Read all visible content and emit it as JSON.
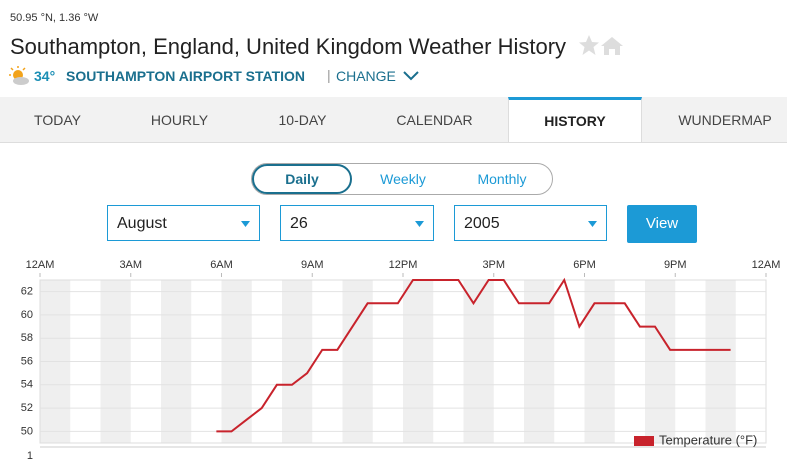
{
  "header": {
    "coords": "50.95 °N, 1.36 °W",
    "title": "Southampton, England, United Kingdom Weather History",
    "current_temp": "34°",
    "station": "SOUTHAMPTON AIRPORT STATION",
    "change": "CHANGE"
  },
  "tabs": [
    "TODAY",
    "HOURLY",
    "10-DAY",
    "CALENDAR",
    "HISTORY",
    "WUNDERMAP"
  ],
  "toggle": [
    "Daily",
    "Weekly",
    "Monthly"
  ],
  "selects": {
    "month": "August",
    "day": "26",
    "year": "2005",
    "button": "View"
  },
  "lower_panel": {
    "tick_label": "1"
  },
  "chart_data": {
    "type": "line",
    "x": [
      5.83,
      6.33,
      6.83,
      7.33,
      7.83,
      8.33,
      8.83,
      9.33,
      9.83,
      10.33,
      10.83,
      11.33,
      11.83,
      12.33,
      12.83,
      13.33,
      13.83,
      14.33,
      14.83,
      15.33,
      15.83,
      16.33,
      16.83,
      17.33,
      17.83,
      18.33,
      18.83,
      19.33,
      19.83,
      20.33,
      20.83,
      21.33,
      21.83,
      22.33,
      22.83
    ],
    "series": [
      {
        "name": "Temperature (°F)",
        "color": "#c8232c",
        "values": [
          50,
          50,
          51,
          52,
          54,
          54,
          55,
          57,
          57,
          59,
          61,
          61,
          61,
          63,
          63,
          63,
          63,
          61,
          63,
          63,
          61,
          61,
          61,
          63,
          59,
          61,
          61,
          61,
          59,
          59,
          57,
          57,
          57,
          57,
          57
        ]
      }
    ],
    "xlim": [
      0,
      24
    ],
    "xticks": [
      {
        "value": 0,
        "label": "12AM"
      },
      {
        "value": 3,
        "label": "3AM"
      },
      {
        "value": 6,
        "label": "6AM"
      },
      {
        "value": 9,
        "label": "9AM"
      },
      {
        "value": 12,
        "label": "12PM"
      },
      {
        "value": 15,
        "label": "3PM"
      },
      {
        "value": 18,
        "label": "6PM"
      },
      {
        "value": 21,
        "label": "9PM"
      },
      {
        "value": 24,
        "label": "12AM"
      }
    ],
    "ylim": [
      49,
      63
    ],
    "yticks": [
      50,
      52,
      54,
      56,
      58,
      60,
      62
    ],
    "grid": true,
    "legend": "bottom-right"
  }
}
